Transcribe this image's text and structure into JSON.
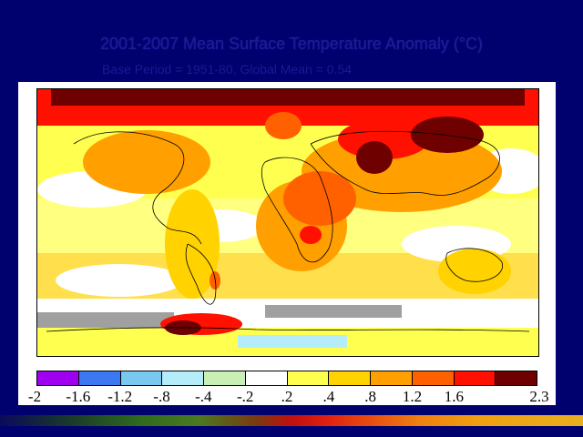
{
  "title": "2001-2007 Mean Surface Temperature Anomaly (°C)",
  "subtitle": "Base Period = 1951-80, Global Mean = 0.54",
  "legend": {
    "colors": [
      "#a000f0",
      "#3c78f0",
      "#78c8f0",
      "#b4ecfa",
      "#c8f0b4",
      "#ffffff",
      "#ffff50",
      "#ffd200",
      "#ffa000",
      "#ff6000",
      "#ff1000",
      "#6e0000"
    ],
    "tick_labels": [
      "-2",
      "-1.6",
      "-1.2",
      "-.8",
      "-.4",
      "-.2",
      ".2",
      ".4",
      ".8",
      "1.2",
      "1.6",
      "2.3"
    ]
  },
  "map": {
    "projection": "equirectangular",
    "no_data_color": "#a0a0a0",
    "coastline_color": "#000000"
  }
}
